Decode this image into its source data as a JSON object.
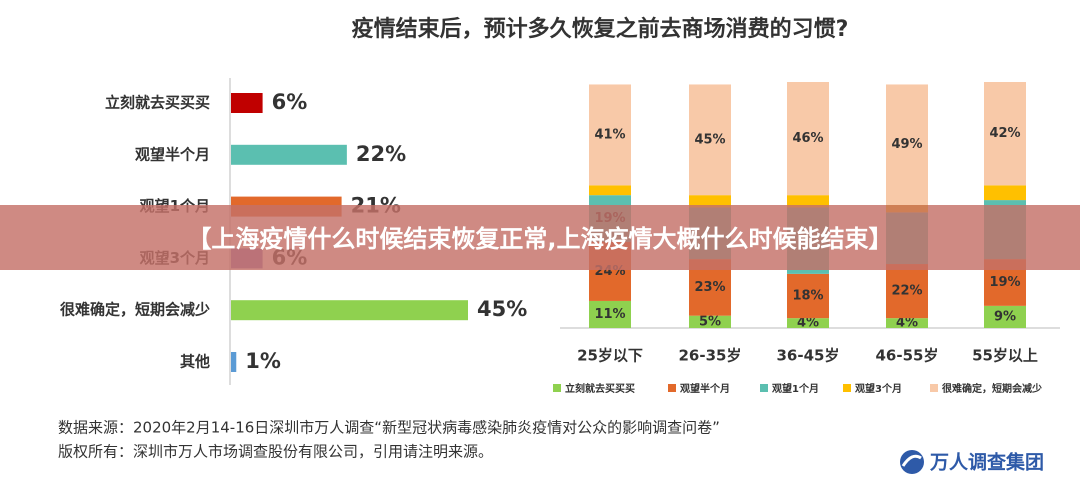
{
  "title": "疫情结束后，预计多久恢复之前去商场消费的习惯?",
  "banner": "【上海疫情什么时候结束恢复正常,上海疫情大概什么时候能结束】",
  "source": [
    "数据来源：2020年2月14-16日深圳市万人调查“新型冠状病毒感染肺炎疫情对公众的影响调查问卷”",
    "版权所有：深圳市万人市场调查股份有限公司，引用请注明来源。"
  ],
  "logo": "万人调查集团",
  "chart_data": [
    {
      "type": "hbar",
      "categories": [
        "立刻就去买买买",
        "观望半个月",
        "观望1个月",
        "观望3个月",
        "很难确定，短期会减少",
        "其他"
      ],
      "values": [
        6,
        22,
        21,
        6,
        45,
        1
      ],
      "value_labels": [
        "6%",
        "22%",
        "21%",
        "6%",
        "45%",
        "1%"
      ],
      "colors": [
        "#c00000",
        "#5bbfb0",
        "#e2692b",
        "#8e7cc3",
        "#8fd14f",
        "#5b9bd5"
      ],
      "xlim": [
        0,
        45
      ]
    },
    {
      "type": "stacked_bar",
      "categories": [
        "25岁以下",
        "26-35岁",
        "36-45岁",
        "46-55岁",
        "55岁以上"
      ],
      "ylim": [
        0,
        100
      ],
      "series": [
        {
          "name": "立刻就去买买买",
          "color": "#8fd14f",
          "values": [
            11,
            5,
            4,
            4,
            9
          ],
          "value_labels": [
            "11%",
            "5%",
            "4%",
            "4%",
            "9%"
          ]
        },
        {
          "name": "观望半个月",
          "color": "#e2692b",
          "values": [
            24,
            23,
            18,
            22,
            19
          ],
          "value_labels": [
            "24%",
            "23%",
            "18%",
            "22%",
            "19%"
          ]
        },
        {
          "name": "观望1个月",
          "color": "#5bbfb0",
          "values": [
            19,
            21,
            27,
            21,
            24
          ],
          "value_labels": [
            "19%",
            null,
            null,
            null,
            null
          ]
        },
        {
          "name": "观望3个月",
          "color": "#ffc000",
          "values": [
            4,
            5,
            5,
            3,
            6
          ]
        },
        {
          "name": "很难确定，短期会减少",
          "color": "#f8c9a8",
          "values": [
            41,
            45,
            46,
            49,
            42
          ],
          "value_labels": [
            "41%",
            "45%",
            "46%",
            "49%",
            "42%"
          ]
        }
      ]
    }
  ]
}
